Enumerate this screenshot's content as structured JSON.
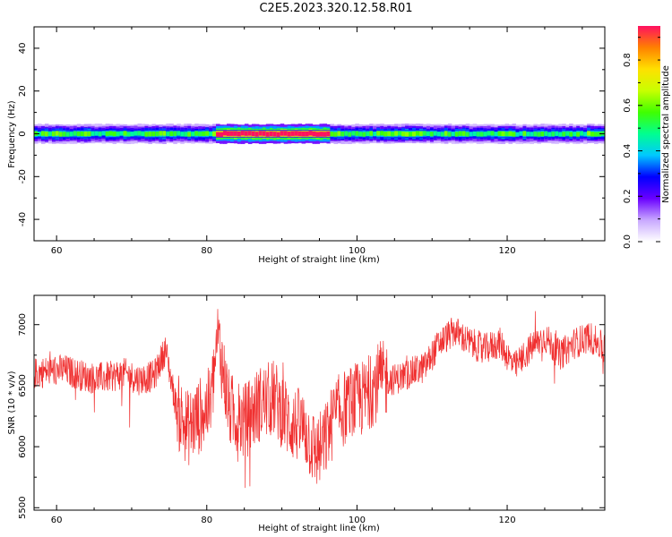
{
  "title": "C2E5.2023.320.12.58.R01",
  "colors": {
    "snr_line": "#f03030",
    "colormap": [
      "#ffffff",
      "#c8a8ff",
      "#6a00ff",
      "#0000ff",
      "#00c8ff",
      "#00ff90",
      "#40ff00",
      "#c8ff00",
      "#ffe000",
      "#ff8000",
      "#ff1060"
    ]
  },
  "chart_data": [
    {
      "type": "heatmap",
      "title": "",
      "xlabel": "Height of straight line (km)",
      "ylabel": "Frequency (Hz)",
      "xlim": [
        57,
        133
      ],
      "ylim": [
        -50,
        50
      ],
      "xticks": [
        60,
        80,
        100,
        120
      ],
      "yticks": [
        -40,
        -20,
        0,
        20,
        40
      ],
      "colorbar": {
        "label": "Normalized spectral amplitude",
        "range": [
          0,
          0.95
        ],
        "ticks": [
          0.0,
          0.2,
          0.4,
          0.6,
          0.8
        ]
      },
      "description_band": {
        "center_freq_hz": 0,
        "half_width_hz": 4,
        "peak_region_km": [
          81,
          96
        ],
        "peak_amplitude": 0.9,
        "typical_amplitude": 0.45
      }
    },
    {
      "type": "line",
      "title": "",
      "xlabel": "Height of straight line (km)",
      "ylabel": "SNR (10 * v/v)",
      "xlim": [
        57,
        133
      ],
      "ylim": [
        5480,
        7240
      ],
      "xticks": [
        60,
        80,
        100,
        120
      ],
      "yticks": [
        5500,
        6000,
        6500,
        7000
      ],
      "series": [
        {
          "x": [
            57,
            59,
            61,
            63,
            65,
            67,
            69,
            71,
            73,
            74.5,
            76,
            77.5,
            79,
            80.5,
            81.5,
            83,
            85,
            87,
            89,
            91,
            93,
            94.5,
            95.5,
            97,
            99,
            101,
            103,
            105,
            107,
            109,
            111,
            113,
            115,
            117,
            119,
            121,
            123,
            125,
            127,
            129,
            131,
            133
          ],
          "y": [
            6600,
            6620,
            6630,
            6590,
            6560,
            6570,
            6600,
            6550,
            6580,
            6800,
            6300,
            6150,
            6250,
            6350,
            6900,
            6300,
            6200,
            6350,
            6400,
            6200,
            6150,
            5950,
            6000,
            6250,
            6350,
            6400,
            6550,
            6550,
            6600,
            6650,
            6850,
            6950,
            6850,
            6800,
            6850,
            6650,
            6800,
            6900,
            6750,
            6850,
            6900,
            6800
          ]
        }
      ]
    }
  ]
}
